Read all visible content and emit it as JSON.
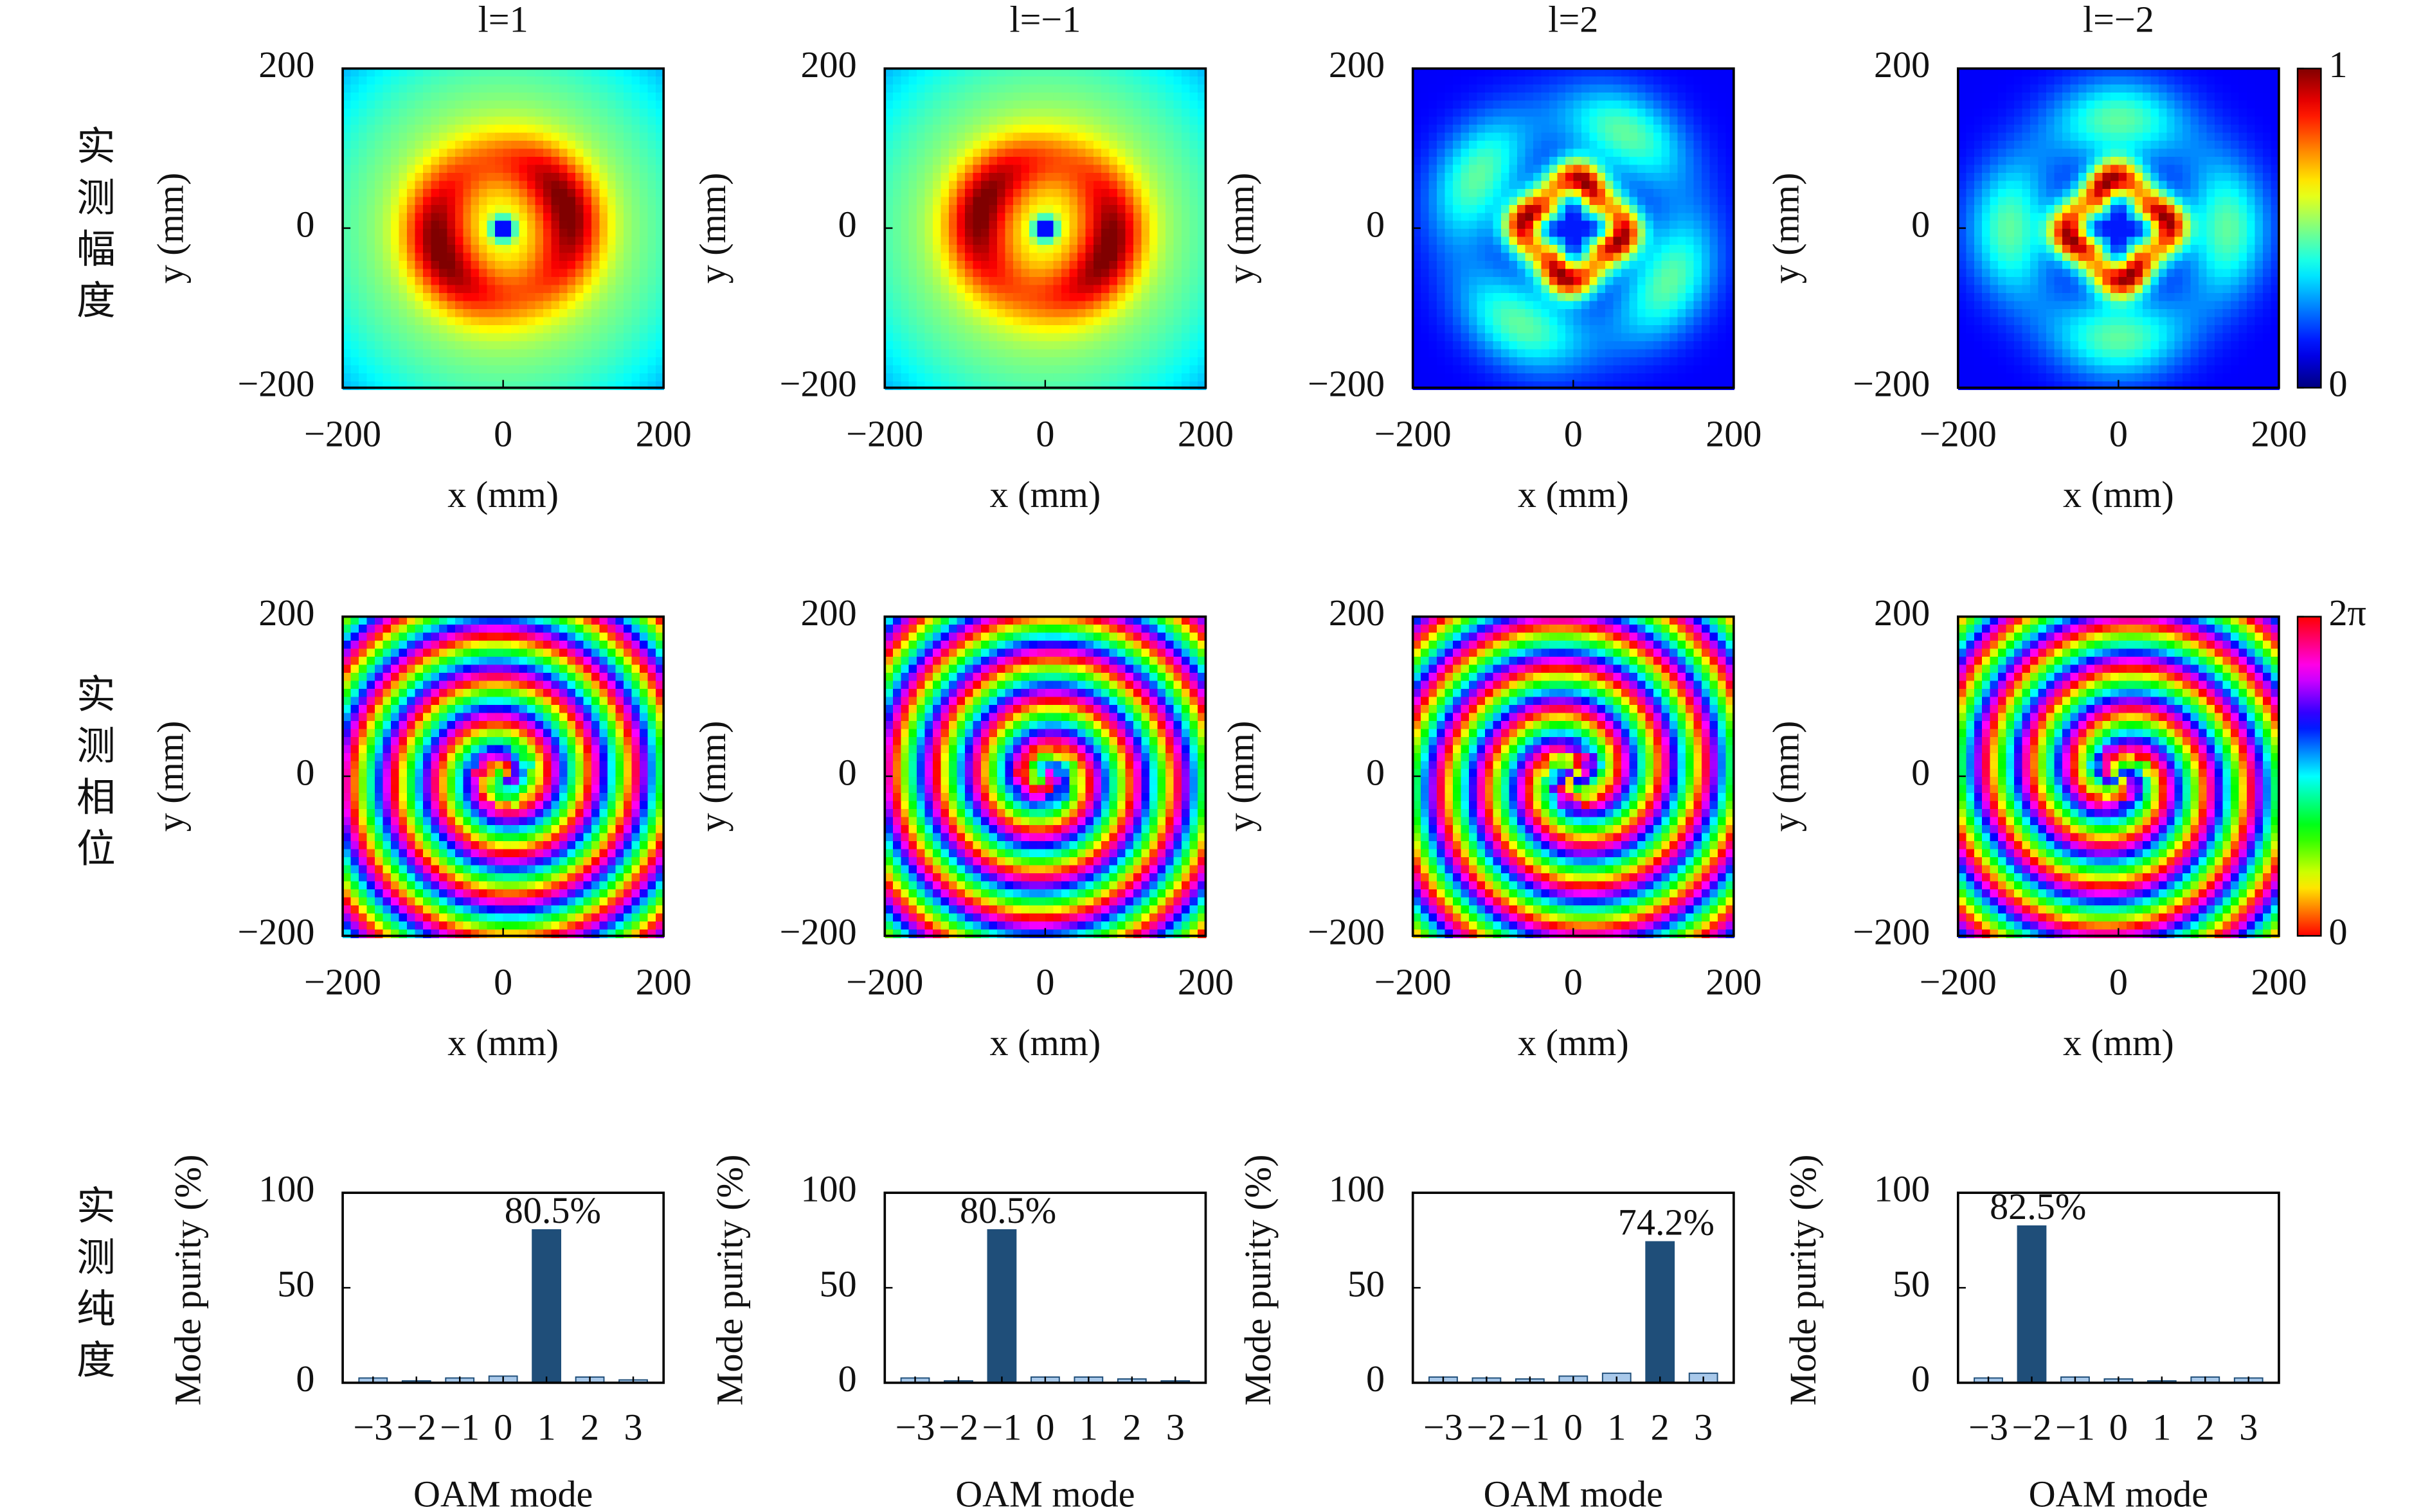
{
  "row_labels": [
    "实测幅度",
    "实测相位",
    "实测纯度"
  ],
  "chart_data": [
    {
      "type": "heatmap",
      "title": "l=1",
      "mode": "amplitude",
      "l": 1,
      "colormap": "jet",
      "xlabel": "x (mm)",
      "ylabel": "y (mm)",
      "xlim": [
        -200,
        200
      ],
      "ylim": [
        -200,
        200
      ],
      "xticks": [
        {
          "value": -200,
          "label": "−200"
        },
        0,
        200
      ],
      "yticks": [
        {
          "value": -200,
          "label": "−200"
        },
        0,
        200
      ]
    },
    {
      "type": "heatmap",
      "title": "l=−1",
      "mode": "amplitude",
      "l": -1,
      "colormap": "jet",
      "xlabel": "x (mm)",
      "ylabel": "y (mm)",
      "xlim": [
        -200,
        200
      ],
      "ylim": [
        -200,
        200
      ],
      "xticks": [
        {
          "value": -200,
          "label": "−200"
        },
        0,
        200
      ],
      "yticks": [
        {
          "value": -200,
          "label": "−200"
        },
        0,
        200
      ]
    },
    {
      "type": "heatmap",
      "title": "l=2",
      "mode": "amplitude",
      "l": 2,
      "colormap": "jet",
      "xlabel": "x (mm)",
      "ylabel": "y (mm)",
      "xlim": [
        -200,
        200
      ],
      "ylim": [
        -200,
        200
      ],
      "xticks": [
        {
          "value": -200,
          "label": "−200"
        },
        0,
        200
      ],
      "yticks": [
        {
          "value": -200,
          "label": "−200"
        },
        0,
        200
      ]
    },
    {
      "type": "heatmap",
      "title": "l=−2",
      "mode": "amplitude",
      "l": -2,
      "colormap": "jet",
      "xlabel": "x (mm)",
      "ylabel": "y (mm)",
      "xlim": [
        -200,
        200
      ],
      "ylim": [
        -200,
        200
      ],
      "xticks": [
        {
          "value": -200,
          "label": "−200"
        },
        0,
        200
      ],
      "yticks": [
        {
          "value": -200,
          "label": "−200"
        },
        0,
        200
      ],
      "colorbar": {
        "lim": [
          0,
          1
        ],
        "ticks": [
          0,
          1
        ]
      }
    },
    {
      "type": "heatmap",
      "mode": "phase",
      "l": 1,
      "colormap": "hsv",
      "xlabel": "x (mm)",
      "ylabel": "y (mm)",
      "xlim": [
        -200,
        200
      ],
      "ylim": [
        -200,
        200
      ],
      "xticks": [
        {
          "value": -200,
          "label": "−200"
        },
        0,
        200
      ],
      "yticks": [
        {
          "value": -200,
          "label": "−200"
        },
        0,
        200
      ]
    },
    {
      "type": "heatmap",
      "mode": "phase",
      "l": -1,
      "colormap": "hsv",
      "xlabel": "x (mm)",
      "ylabel": "y (mm)",
      "xlim": [
        -200,
        200
      ],
      "ylim": [
        -200,
        200
      ],
      "xticks": [
        {
          "value": -200,
          "label": "−200"
        },
        0,
        200
      ],
      "yticks": [
        {
          "value": -200,
          "label": "−200"
        },
        0,
        200
      ]
    },
    {
      "type": "heatmap",
      "mode": "phase",
      "l": 2,
      "colormap": "hsv",
      "xlabel": "x (mm)",
      "ylabel": "y (mm)",
      "xlim": [
        -200,
        200
      ],
      "ylim": [
        -200,
        200
      ],
      "xticks": [
        {
          "value": -200,
          "label": "−200"
        },
        0,
        200
      ],
      "yticks": [
        {
          "value": -200,
          "label": "−200"
        },
        0,
        200
      ]
    },
    {
      "type": "heatmap",
      "mode": "phase",
      "l": -2,
      "colormap": "hsv",
      "xlabel": "x (mm)",
      "ylabel": "y (mm)",
      "xlim": [
        -200,
        200
      ],
      "ylim": [
        -200,
        200
      ],
      "xticks": [
        {
          "value": -200,
          "label": "−200"
        },
        0,
        200
      ],
      "yticks": [
        {
          "value": -200,
          "label": "−200"
        },
        0,
        200
      ],
      "colorbar": {
        "lim": [
          0,
          6.283185
        ],
        "ticks": [
          0,
          {
            "value": 6.283185,
            "label": "2π"
          }
        ]
      }
    },
    {
      "type": "bar",
      "xlabel": "OAM mode",
      "ylabel": "Mode purity (%)",
      "categories": [
        "−3",
        "−2",
        "−1",
        "0",
        "1",
        "2",
        "3"
      ],
      "values": [
        2.5,
        1,
        2.5,
        3.5,
        80.5,
        3,
        1.5
      ],
      "value_labels": [
        null,
        null,
        null,
        null,
        "80.5%",
        null,
        null
      ],
      "color": "#a9c9ea",
      "highlight_color": "#1f4e79",
      "ylim": [
        0,
        100
      ],
      "yticks": [
        0,
        50,
        100
      ]
    },
    {
      "type": "bar",
      "xlabel": "OAM mode",
      "ylabel": "Mode purity (%)",
      "categories": [
        "−3",
        "−2",
        "−1",
        "0",
        "1",
        "2",
        "3"
      ],
      "values": [
        2.5,
        1,
        80.5,
        3,
        3,
        2,
        1
      ],
      "value_labels": [
        null,
        null,
        "80.5%",
        null,
        null,
        null,
        null
      ],
      "color": "#a9c9ea",
      "highlight_color": "#1f4e79",
      "ylim": [
        0,
        100
      ],
      "yticks": [
        0,
        50,
        100
      ]
    },
    {
      "type": "bar",
      "xlabel": "OAM mode",
      "ylabel": "Mode purity (%)",
      "categories": [
        "−3",
        "−2",
        "−1",
        "0",
        "1",
        "2",
        "3"
      ],
      "values": [
        3,
        2.5,
        2,
        3.5,
        5,
        74.2,
        5
      ],
      "value_labels": [
        null,
        null,
        null,
        null,
        null,
        "74.2%",
        null
      ],
      "color": "#a9c9ea",
      "highlight_color": "#1f4e79",
      "ylim": [
        0,
        100
      ],
      "yticks": [
        0,
        50,
        100
      ]
    },
    {
      "type": "bar",
      "xlabel": "OAM mode",
      "ylabel": "Mode purity (%)",
      "categories": [
        "−3",
        "−2",
        "−1",
        "0",
        "1",
        "2",
        "3"
      ],
      "values": [
        2.5,
        82.5,
        3,
        2,
        1,
        3,
        2.5
      ],
      "value_labels": [
        null,
        "82.5%",
        null,
        null,
        null,
        null,
        null
      ],
      "color": "#a9c9ea",
      "highlight_color": "#1f4e79",
      "ylim": [
        0,
        100
      ],
      "yticks": [
        0,
        50,
        100
      ]
    }
  ]
}
